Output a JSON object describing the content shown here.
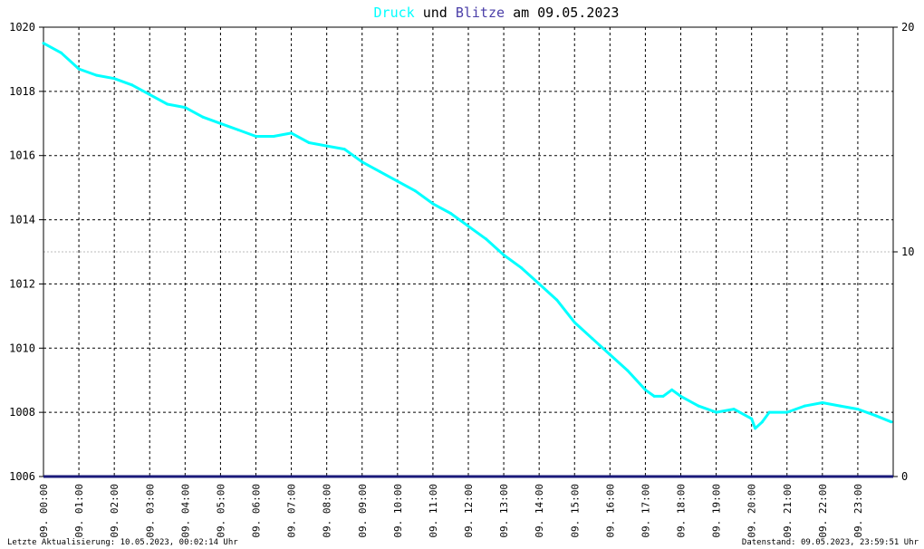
{
  "title": {
    "series1": "Druck",
    "mid": "und",
    "series2": "Blitze",
    "suffix": "am 09.05.2023"
  },
  "colors": {
    "pressure": "#00ffff",
    "lightning": "#4b3fa8",
    "baseline": "#1a1a7a",
    "grid": "#000000"
  },
  "chart_data": {
    "type": "line",
    "x_tick_labels": [
      "09. 00:00",
      "09. 01:00",
      "09. 02:00",
      "09. 03:00",
      "09. 04:00",
      "09. 05:00",
      "09. 06:00",
      "09. 07:00",
      "09. 08:00",
      "09. 09:00",
      "09. 10:00",
      "09. 11:00",
      "09. 12:00",
      "09. 13:00",
      "09. 14:00",
      "09. 15:00",
      "09. 16:00",
      "09. 17:00",
      "09. 18:00",
      "09. 19:00",
      "09. 20:00",
      "09. 21:00",
      "09. 22:00",
      "09. 23:00"
    ],
    "y_left": {
      "ylim": [
        1006,
        1020
      ],
      "ticks": [
        "1020",
        "1018",
        "1016",
        "1014",
        "1012",
        "1010",
        "1008",
        "1006"
      ]
    },
    "y_right": {
      "ylim": [
        0,
        20
      ],
      "ticks": [
        "20",
        "10",
        "0"
      ]
    },
    "grid": true,
    "series": [
      {
        "name": "Druck",
        "x_hours": [
          0,
          0.5,
          1,
          1.5,
          2,
          2.5,
          3,
          3.5,
          4,
          4.5,
          5,
          5.5,
          6,
          6.5,
          7,
          7.5,
          8,
          8.5,
          9,
          9.5,
          10,
          10.5,
          11,
          11.5,
          12,
          12.5,
          13,
          13.5,
          14,
          14.5,
          15,
          15.5,
          16,
          16.5,
          17,
          17.25,
          17.5,
          17.75,
          18,
          18.5,
          19,
          19.5,
          20,
          20.1,
          20.3,
          20.5,
          21,
          21.5,
          22,
          22.5,
          23,
          23.5,
          23.95
        ],
        "values": [
          1019.5,
          1019.2,
          1018.7,
          1018.5,
          1018.4,
          1018.2,
          1017.9,
          1017.6,
          1017.5,
          1017.2,
          1017.0,
          1016.8,
          1016.6,
          1016.6,
          1016.7,
          1016.4,
          1016.3,
          1016.2,
          1015.8,
          1015.5,
          1015.2,
          1014.9,
          1014.5,
          1014.2,
          1013.8,
          1013.4,
          1012.9,
          1012.5,
          1012.0,
          1011.5,
          1010.8,
          1010.3,
          1009.8,
          1009.3,
          1008.7,
          1008.5,
          1008.5,
          1008.7,
          1008.5,
          1008.2,
          1008.0,
          1008.1,
          1007.8,
          1007.5,
          1007.7,
          1008.0,
          1008.0,
          1008.2,
          1008.3,
          1008.2,
          1008.1,
          1007.9,
          1007.7
        ]
      },
      {
        "name": "Blitze",
        "x_hours": [
          0,
          24
        ],
        "values": [
          0,
          0
        ]
      }
    ]
  },
  "footer": {
    "left": "Letzte Aktualisierung: 10.05.2023, 00:02:14 Uhr",
    "right": "Datenstand: 09.05.2023, 23:59:51 Uhr"
  }
}
